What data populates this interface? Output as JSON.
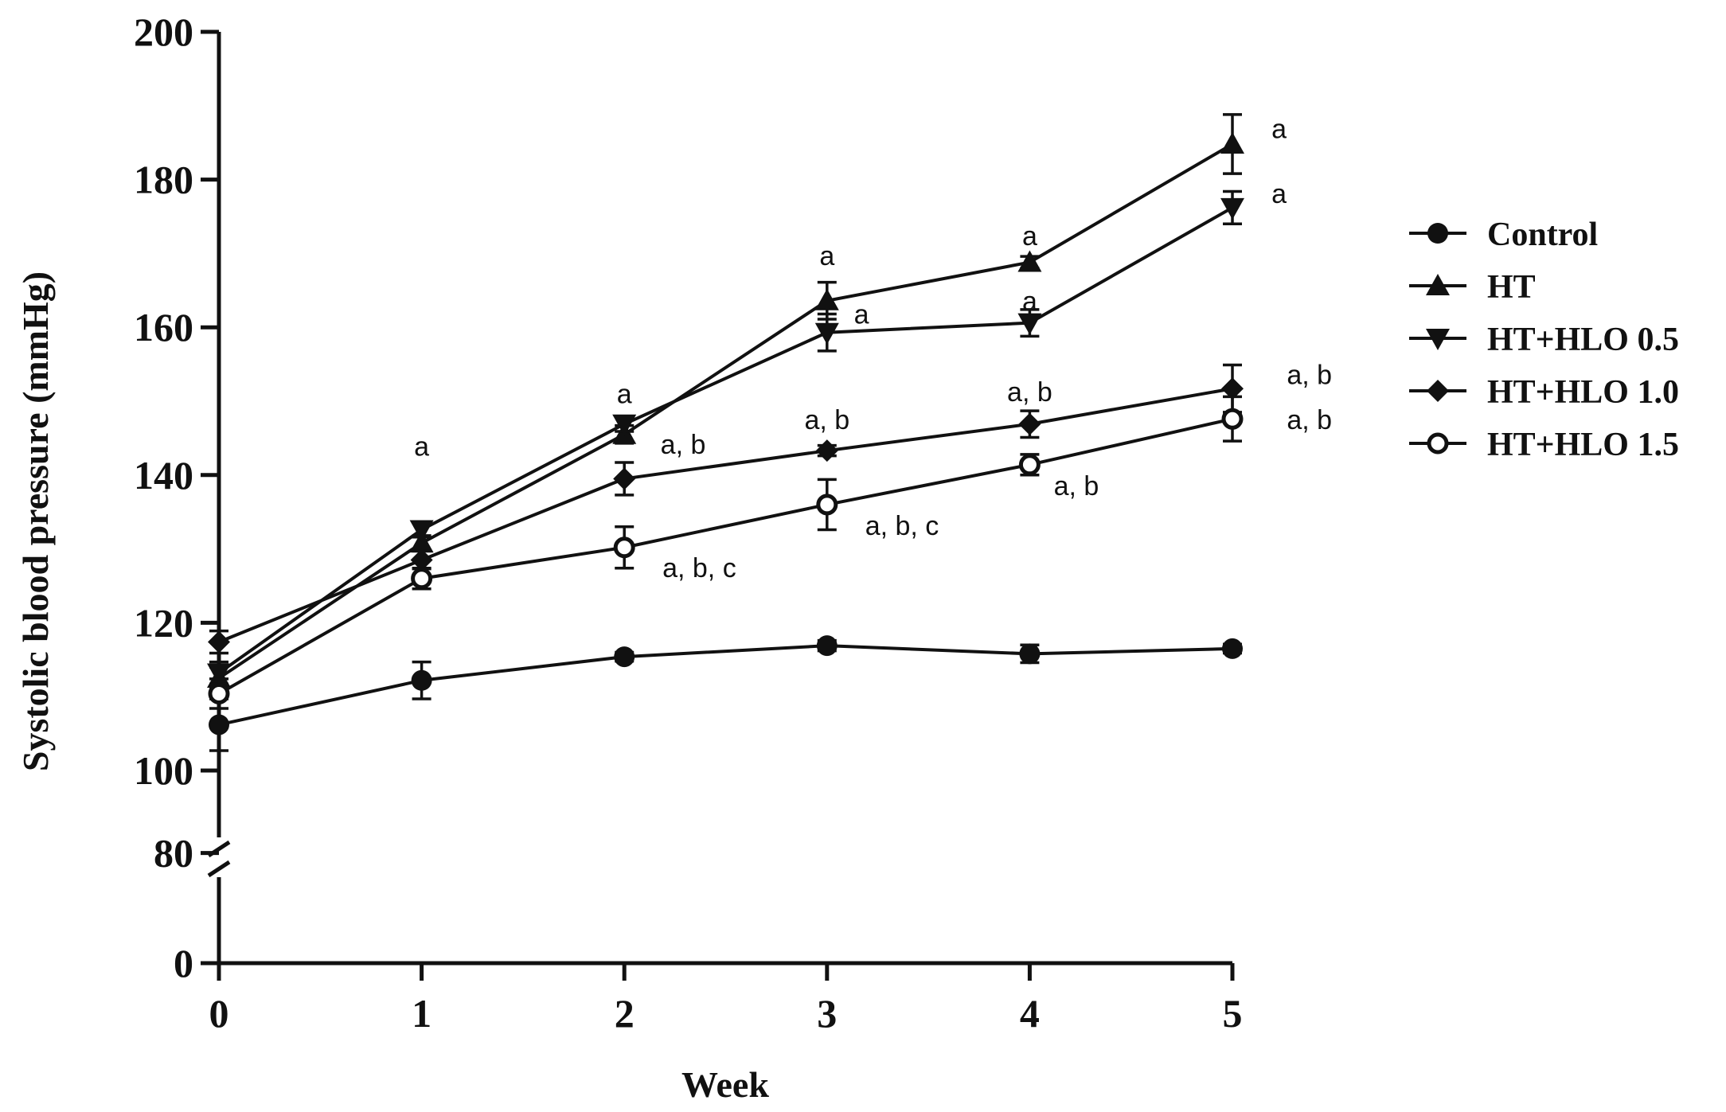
{
  "chart_data": {
    "type": "line",
    "title": "",
    "xlabel": "Week",
    "ylabel": "Systolic blood pressure (mmHg)",
    "x": [
      0,
      1,
      2,
      3,
      4,
      5
    ],
    "x_tick_labels": [
      "0",
      "1",
      "2",
      "3",
      "4",
      "5"
    ],
    "y_ticks_upper": [
      100,
      120,
      140,
      160,
      180,
      200
    ],
    "y_ticks_lower": [
      0,
      80
    ],
    "y_tick_labels": [
      "0",
      "80",
      "100",
      "120",
      "140",
      "160",
      "180",
      "200"
    ],
    "ylim_lower": [
      0,
      85
    ],
    "ylim_upper": [
      95,
      200
    ],
    "axis_break": true,
    "grid": false,
    "legend_position": "right",
    "series": [
      {
        "name": "Control",
        "marker": "circle-filled",
        "values": [
          106.2,
          112.2,
          115.4,
          116.9,
          115.8,
          116.5
        ],
        "errors": [
          3.5,
          2.5,
          0.6,
          0.7,
          1.2,
          0.6
        ]
      },
      {
        "name": "HT",
        "marker": "triangle-up",
        "values": [
          112.5,
          130.8,
          145.5,
          163.6,
          168.8,
          184.8
        ],
        "errors": [
          1.5,
          1.0,
          1.2,
          2.5,
          0.8,
          4.0
        ]
      },
      {
        "name": "HT+HLO 0.5",
        "marker": "triangle-down",
        "values": [
          113.2,
          132.6,
          146.9,
          159.3,
          160.6,
          176.2
        ],
        "errors": [
          1.5,
          1.0,
          1.0,
          2.5,
          1.8,
          2.2
        ]
      },
      {
        "name": "HT+HLO 1.0",
        "marker": "diamond",
        "values": [
          117.4,
          128.5,
          139.5,
          143.3,
          146.9,
          151.7
        ],
        "errors": [
          1.5,
          1.2,
          2.2,
          0.7,
          1.8,
          3.2
        ]
      },
      {
        "name": "HT+HLO 1.5",
        "marker": "circle-open",
        "values": [
          110.4,
          126.0,
          130.2,
          136.0,
          141.4,
          147.6
        ],
        "errors": [
          2.0,
          1.4,
          2.8,
          3.4,
          1.4,
          3.0
        ]
      }
    ],
    "annotations": [
      {
        "text": "a",
        "x": 1,
        "y": 143.9
      },
      {
        "text": "a",
        "x": 2,
        "y": 151.0
      },
      {
        "text": "a, b",
        "x": 2.29,
        "y": 144.2
      },
      {
        "text": "a, b, c",
        "x": 2.37,
        "y": 127.5
      },
      {
        "text": "a",
        "x": 3,
        "y": 169.7
      },
      {
        "text": "a",
        "x": 3.17,
        "y": 161.8
      },
      {
        "text": "a, b",
        "x": 3,
        "y": 147.5
      },
      {
        "text": "a, b, c",
        "x": 3.37,
        "y": 133.2
      },
      {
        "text": "a",
        "x": 4,
        "y": 172.4
      },
      {
        "text": "a",
        "x": 4,
        "y": 163.6
      },
      {
        "text": "a, b",
        "x": 4,
        "y": 151.3
      },
      {
        "text": "a, b",
        "x": 4.23,
        "y": 138.6
      },
      {
        "text": "a",
        "x": 5.23,
        "y": 186.9
      },
      {
        "text": "a",
        "x": 5.23,
        "y": 178.1
      },
      {
        "text": "a, b",
        "x": 5.38,
        "y": 153.6
      },
      {
        "text": "a, b",
        "x": 5.38,
        "y": 147.5
      }
    ]
  }
}
